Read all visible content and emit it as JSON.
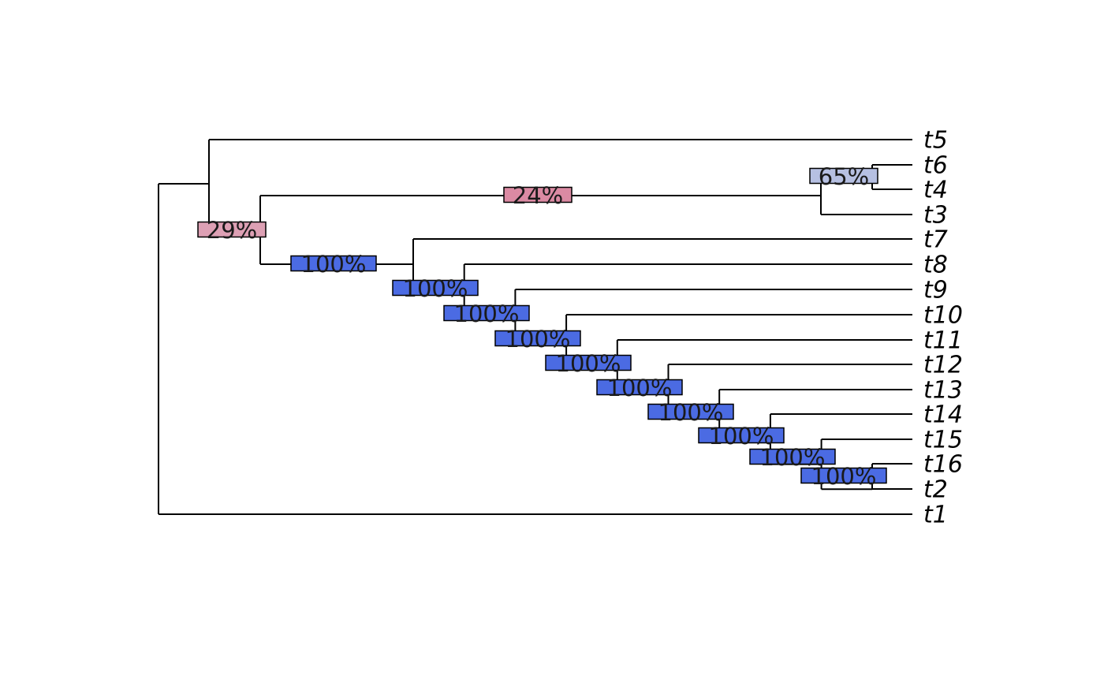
{
  "tree": {
    "tips": [
      {
        "id": "t5",
        "label": "t5"
      },
      {
        "id": "t6",
        "label": "t6"
      },
      {
        "id": "t4",
        "label": "t4"
      },
      {
        "id": "t3",
        "label": "t3"
      },
      {
        "id": "t7",
        "label": "t7"
      },
      {
        "id": "t8",
        "label": "t8"
      },
      {
        "id": "t9",
        "label": "t9"
      },
      {
        "id": "t10",
        "label": "t10"
      },
      {
        "id": "t11",
        "label": "t11"
      },
      {
        "id": "t12",
        "label": "t12"
      },
      {
        "id": "t13",
        "label": "t13"
      },
      {
        "id": "t14",
        "label": "t14"
      },
      {
        "id": "t15",
        "label": "t15"
      },
      {
        "id": "t16",
        "label": "t16"
      },
      {
        "id": "t2",
        "label": "t2"
      },
      {
        "id": "t1",
        "label": "t1"
      }
    ],
    "newick": "(((t5,(((t6,t4),t3),(t7,(t8,(t9,(t10,(t11,(t12,(t13,(t14,(t15,(t16,t2)))))))))))),t1);",
    "support_labels": [
      {
        "node": "n-t5-clade",
        "text": "29%",
        "color": "#DDA0B4"
      },
      {
        "node": "n-t6t4t3",
        "text": "24%",
        "color": "#DB8AA3"
      },
      {
        "node": "n-t6t4",
        "text": "65%",
        "color": "#B6C0E2"
      },
      {
        "node": "n-t7-clade",
        "text": "100%",
        "color": "#4B6BE3"
      },
      {
        "node": "n-t8-clade",
        "text": "100%",
        "color": "#4B6BE3"
      },
      {
        "node": "n-t9-clade",
        "text": "100%",
        "color": "#4B6BE3"
      },
      {
        "node": "n-t10-clade",
        "text": "100%",
        "color": "#4B6BE3"
      },
      {
        "node": "n-t11-clade",
        "text": "100%",
        "color": "#4B6BE3"
      },
      {
        "node": "n-t12-clade",
        "text": "100%",
        "color": "#4B6BE3"
      },
      {
        "node": "n-t13-clade",
        "text": "100%",
        "color": "#4B6BE3"
      },
      {
        "node": "n-t14-clade",
        "text": "100%",
        "color": "#4B6BE3"
      },
      {
        "node": "n-t15-clade",
        "text": "100%",
        "color": "#4B6BE3"
      },
      {
        "node": "n-t16t2",
        "text": "100%",
        "color": "#4B6BE3"
      }
    ]
  }
}
